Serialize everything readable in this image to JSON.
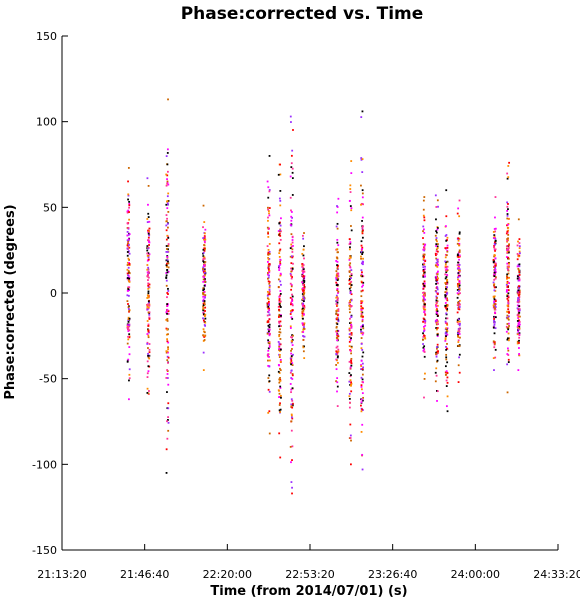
{
  "chart_data": {
    "type": "scatter",
    "title": "Phase:corrected vs. Time",
    "xlabel": "Time (from 2014/07/01) (s)",
    "ylabel": "Phase:corrected (degrees)",
    "xlim": [
      "21:13:20",
      "24:33:20"
    ],
    "ylim": [
      -150,
      150
    ],
    "x_ticks": [
      "21:13:20",
      "21:46:40",
      "22:20:00",
      "22:53:20",
      "23:26:40",
      "24:00:00",
      "24:33:20"
    ],
    "y_ticks": [
      -150,
      -100,
      -50,
      0,
      50,
      100,
      150
    ],
    "grid": false,
    "marker_colors": [
      "#000000",
      "#ff0000",
      "#ff00ff",
      "#ff8c00",
      "#9b30ff",
      "#ff3399",
      "#cc6600"
    ],
    "scans": [
      {
        "time": "21:40:10",
        "min": -62,
        "max": 73
      },
      {
        "time": "21:48:10",
        "min": -59,
        "max": 67
      },
      {
        "time": "21:55:50",
        "min": -105,
        "max": 113
      },
      {
        "time": "22:10:40",
        "min": -45,
        "max": 51
      },
      {
        "time": "22:36:40",
        "min": -82,
        "max": 80
      },
      {
        "time": "22:41:10",
        "min": -96,
        "max": 75
      },
      {
        "time": "22:46:00",
        "min": -117,
        "max": 103
      },
      {
        "time": "22:50:40",
        "min": -38,
        "max": 35
      },
      {
        "time": "23:04:20",
        "min": -66,
        "max": 55
      },
      {
        "time": "23:09:40",
        "min": -100,
        "max": 77
      },
      {
        "time": "23:14:20",
        "min": -103,
        "max": 106
      },
      {
        "time": "23:39:20",
        "min": -61,
        "max": 56
      },
      {
        "time": "23:44:30",
        "min": -63,
        "max": 57
      },
      {
        "time": "23:48:20",
        "min": -69,
        "max": 60
      },
      {
        "time": "23:53:20",
        "min": -52,
        "max": 54
      },
      {
        "time": "24:07:50",
        "min": -45,
        "max": 56
      },
      {
        "time": "24:13:10",
        "min": -58,
        "max": 76
      },
      {
        "time": "24:17:30",
        "min": -45,
        "max": 43
      }
    ]
  }
}
